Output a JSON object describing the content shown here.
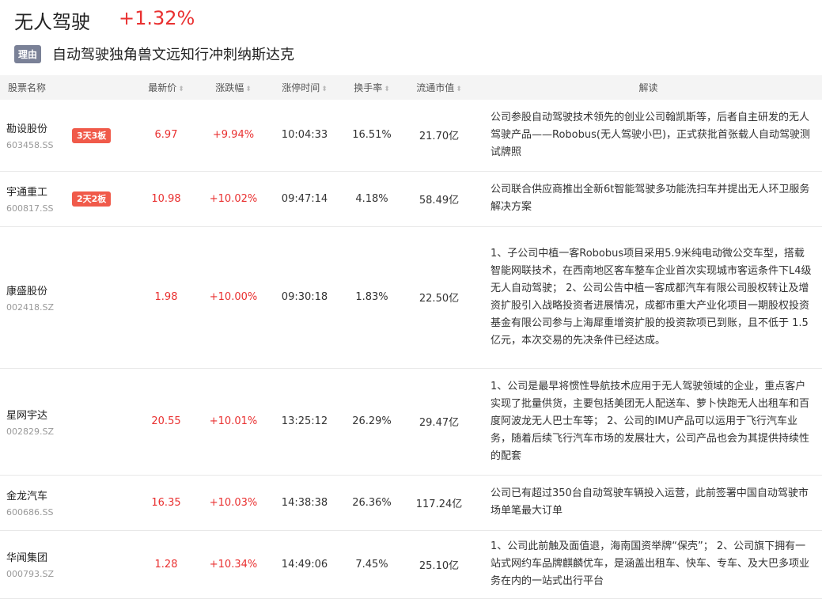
{
  "header": {
    "title": "无人驾驶",
    "change": "+1.32%",
    "reason_tag": "理由",
    "reason": "自动驾驶独角兽文远知行冲刺纳斯达克"
  },
  "columns": [
    "股票名称",
    "最新价",
    "涨跌幅",
    "涨停时间",
    "换手率",
    "流通市值",
    "解读"
  ],
  "colors": {
    "up": "#e93030",
    "badge": "#f05a4a",
    "tag": "#7a8197"
  },
  "rows": [
    {
      "name": "勘设股份",
      "code": "603458.SS",
      "badge": "3天3板",
      "price": "6.97",
      "change": "+9.94%",
      "time": "10:04:33",
      "turnover": "16.51%",
      "mcap": "21.70亿",
      "desc": "公司参股自动驾驶技术领先的创业公司翰凯斯等，后者自主研发的无人驾驶产品——Robobus(无人驾驶小巴)，正式获批首张载人自动驾驶测试牌照"
    },
    {
      "name": "宇通重工",
      "code": "600817.SS",
      "badge": "2天2板",
      "price": "10.98",
      "change": "+10.02%",
      "time": "09:47:14",
      "turnover": "4.18%",
      "mcap": "58.49亿",
      "desc": "公司联合供应商推出全新6t智能驾驶多功能洗扫车并提出无人环卫服务解决方案"
    },
    {
      "name": "康盛股份",
      "code": "002418.SZ",
      "badge": "",
      "price": "1.98",
      "change": "+10.00%",
      "time": "09:30:18",
      "turnover": "1.83%",
      "mcap": "22.50亿",
      "desc": "1、子公司中植一客Robobus项目采用5.9米纯电动微公交车型，搭载智能网联技术，在西南地区客车整车企业首次实现城市客运条件下L4级无人自动驾驶； 2、公司公告中植一客成都汽车有限公司股权转让及增资扩股引入战略投资者进展情况，成都市重大产业化项目一期股权投资基金有限公司参与上海犀重增资扩股的投资款项已到账，且不低于 1.5 亿元，本次交易的先决条件已经达成。"
    },
    {
      "name": "星网宇达",
      "code": "002829.SZ",
      "badge": "",
      "price": "20.55",
      "change": "+10.01%",
      "time": "13:25:12",
      "turnover": "26.29%",
      "mcap": "29.47亿",
      "desc": "1、公司是最早将惯性导航技术应用于无人驾驶领域的企业，重点客户实现了批量供货，主要包括美团无人配送车、萝卜快跑无人出租车和百度阿波龙无人巴士车等； 2、公司的IMU产品可以运用于飞行汽车业务，随着后续飞行汽车市场的发展壮大，公司产品也会为其提供持续性的配套"
    },
    {
      "name": "金龙汽车",
      "code": "600686.SS",
      "badge": "",
      "price": "16.35",
      "change": "+10.03%",
      "time": "14:38:38",
      "turnover": "26.36%",
      "mcap": "117.24亿",
      "desc": "公司已有超过350台自动驾驶车辆投入运营，此前签署中国自动驾驶市场单笔最大订单"
    },
    {
      "name": "华闻集团",
      "code": "000793.SZ",
      "badge": "",
      "price": "1.28",
      "change": "+10.34%",
      "time": "14:49:06",
      "turnover": "7.45%",
      "mcap": "25.10亿",
      "desc": "1、公司此前触及面值退，海南国资举牌“保壳”； 2、公司旗下拥有一站式网约车品牌麒麟优车，是涵盖出租车、快车、专车、及大巴多项业务在内的一站式出行平台"
    }
  ]
}
